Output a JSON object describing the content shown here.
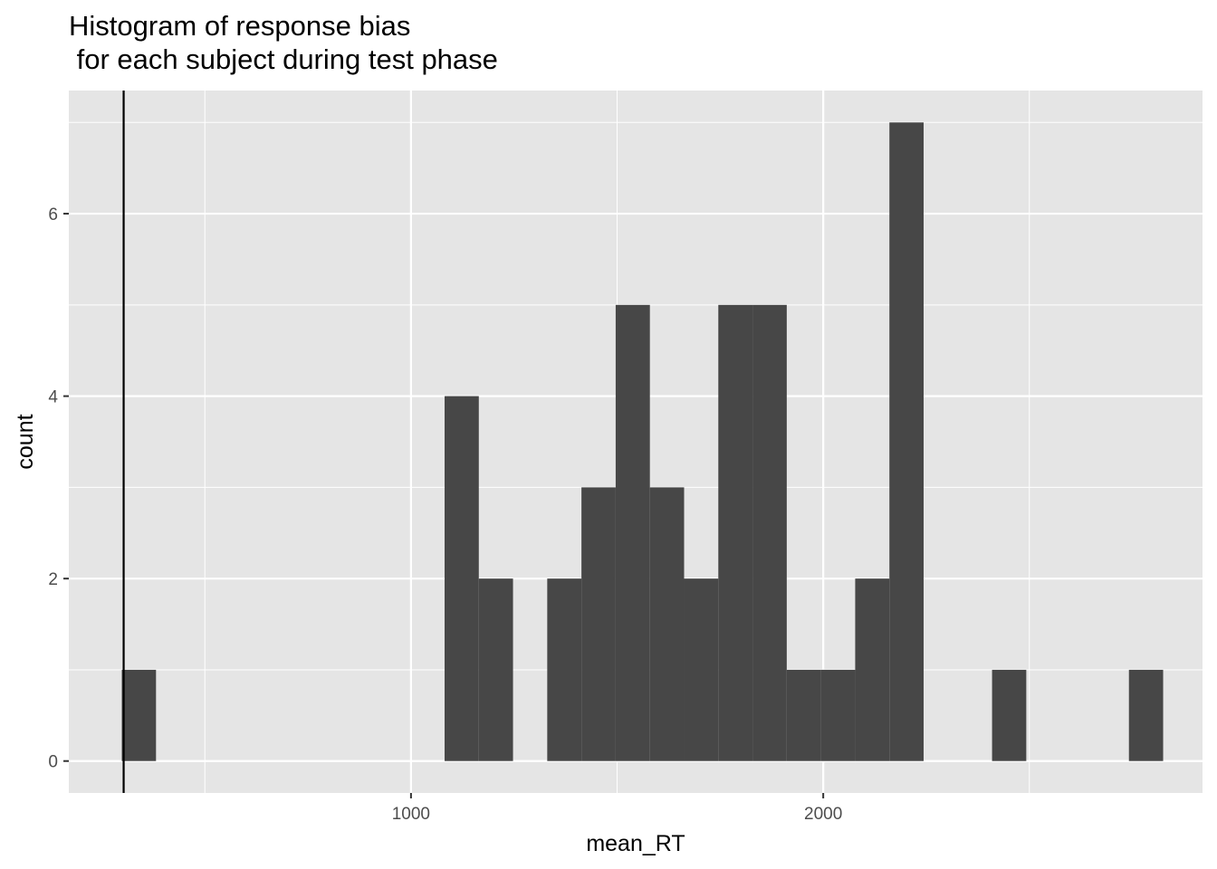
{
  "chart_data": {
    "type": "bar",
    "title_line1": "Histogram of response bias",
    "title_line2": " for each subject during test phase",
    "xlabel": "mean_RT",
    "ylabel": "count",
    "xlim": [
      170,
      2920
    ],
    "ylim": [
      -0.35,
      7.35
    ],
    "x_ticks": [
      {
        "value": 1000,
        "label": "1000"
      },
      {
        "value": 2000,
        "label": "2000"
      }
    ],
    "x_minor_ticks": [
      500,
      1500,
      2500
    ],
    "y_ticks": [
      {
        "value": 0,
        "label": "0"
      },
      {
        "value": 2,
        "label": "2"
      },
      {
        "value": 4,
        "label": "4"
      },
      {
        "value": 6,
        "label": "6"
      }
    ],
    "y_minor_ticks": [
      1,
      3,
      5,
      7
    ],
    "bin_width": 83,
    "bins": [
      {
        "x": 340,
        "count": 1
      },
      {
        "x": 1123,
        "count": 4
      },
      {
        "x": 1206,
        "count": 2
      },
      {
        "x": 1289,
        "count": 0
      },
      {
        "x": 1372,
        "count": 2
      },
      {
        "x": 1455,
        "count": 3
      },
      {
        "x": 1538,
        "count": 5
      },
      {
        "x": 1621,
        "count": 3
      },
      {
        "x": 1704,
        "count": 2
      },
      {
        "x": 1787,
        "count": 5
      },
      {
        "x": 1870,
        "count": 5
      },
      {
        "x": 1953,
        "count": 1
      },
      {
        "x": 2036,
        "count": 1
      },
      {
        "x": 2119,
        "count": 2
      },
      {
        "x": 2202,
        "count": 7
      },
      {
        "x": 2451,
        "count": 1
      },
      {
        "x": 2783,
        "count": 1
      }
    ],
    "vline_x": 303,
    "colors": {
      "panel": "#e5e5e5",
      "grid": "#ffffff",
      "bar": "#474747",
      "vline": "#000000",
      "tick_text": "#4d4d4d"
    },
    "grid": true,
    "legend": "none"
  }
}
